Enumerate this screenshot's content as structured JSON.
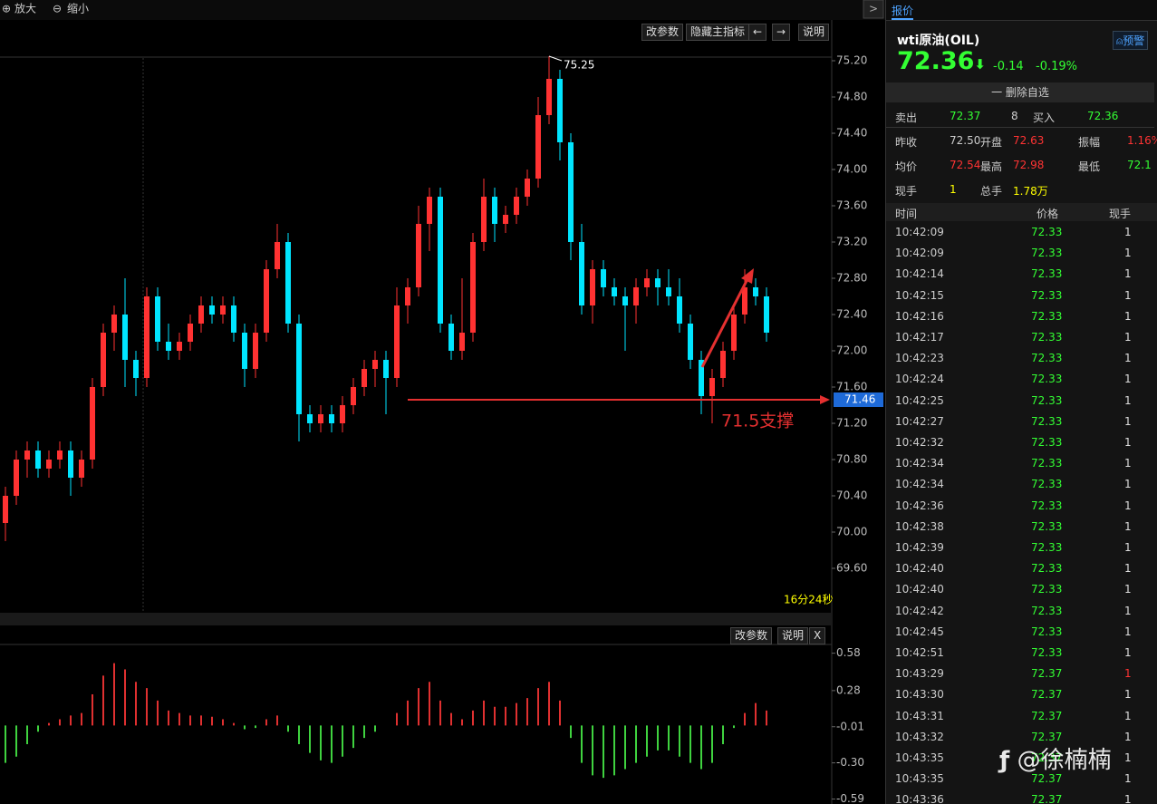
{
  "toolbar": {
    "zoom_in": "放大",
    "zoom_out": "缩小",
    "buttons": [
      "改参数",
      "隐藏主指标",
      "←",
      "→",
      "说明"
    ],
    "timer": "16分24秒",
    "lower_buttons": [
      "改参数",
      "说明",
      "X"
    ]
  },
  "chart_data": [
    {
      "type": "candlestick",
      "open": [
        70.1,
        70.4,
        70.8,
        70.9,
        70.7,
        70.8,
        70.9,
        70.6,
        70.8,
        71.6,
        72.2,
        72.4,
        71.9,
        71.7,
        72.6,
        72.1,
        72.0,
        72.1,
        72.3,
        72.5,
        72.4,
        72.5,
        72.2,
        71.8,
        72.2,
        72.9,
        73.2,
        72.3,
        71.3,
        71.2,
        71.3,
        71.2,
        71.4,
        71.6,
        71.8,
        71.9,
        71.7,
        72.5,
        72.7,
        73.4,
        73.7,
        72.3,
        72.0,
        72.2,
        73.2,
        73.7,
        73.4,
        73.5,
        73.7,
        73.9,
        74.6,
        75.0,
        74.3,
        73.2,
        72.5,
        72.9,
        72.7,
        72.6,
        72.5,
        72.7,
        72.8,
        72.7,
        72.6,
        72.3,
        71.9,
        71.5,
        71.7,
        72.0,
        72.4,
        72.7,
        72.6
      ],
      "high": [
        70.5,
        70.9,
        71.0,
        71.0,
        70.9,
        71.0,
        71.0,
        70.9,
        71.7,
        72.3,
        72.5,
        72.8,
        72.0,
        72.7,
        72.7,
        72.3,
        72.2,
        72.4,
        72.6,
        72.6,
        72.6,
        72.6,
        72.3,
        72.3,
        73.0,
        73.4,
        73.3,
        72.4,
        71.4,
        71.4,
        71.4,
        71.5,
        71.7,
        71.9,
        72.0,
        72.0,
        72.7,
        72.8,
        73.6,
        73.8,
        73.8,
        72.4,
        72.8,
        73.3,
        73.9,
        73.8,
        73.6,
        73.8,
        74.0,
        74.8,
        75.25,
        75.1,
        74.4,
        73.4,
        73.0,
        73.0,
        72.8,
        72.7,
        72.8,
        72.9,
        72.9,
        72.9,
        72.8,
        72.4,
        72.0,
        71.8,
        72.1,
        72.5,
        72.9,
        72.8,
        72.7
      ],
      "low": [
        69.9,
        70.3,
        70.6,
        70.6,
        70.6,
        70.7,
        70.4,
        70.5,
        70.7,
        71.5,
        72.0,
        71.6,
        71.5,
        71.6,
        72.0,
        71.9,
        71.9,
        72.0,
        72.2,
        72.3,
        72.3,
        72.1,
        71.6,
        71.7,
        72.1,
        72.8,
        72.2,
        71.0,
        71.1,
        71.1,
        71.1,
        71.1,
        71.3,
        71.5,
        71.6,
        71.3,
        71.6,
        72.3,
        72.6,
        73.1,
        72.2,
        71.9,
        71.9,
        72.1,
        73.1,
        73.2,
        73.3,
        73.4,
        73.6,
        73.8,
        74.5,
        74.1,
        73.0,
        72.4,
        72.3,
        72.6,
        72.5,
        72.0,
        72.3,
        72.6,
        72.5,
        72.5,
        72.2,
        71.8,
        71.3,
        71.2,
        71.6,
        71.9,
        72.3,
        72.5,
        72.1
      ],
      "close": [
        70.4,
        70.8,
        70.9,
        70.7,
        70.8,
        70.9,
        70.6,
        70.8,
        71.6,
        72.2,
        72.4,
        71.9,
        71.7,
        72.6,
        72.1,
        72.0,
        72.1,
        72.3,
        72.5,
        72.4,
        72.5,
        72.2,
        71.8,
        72.2,
        72.9,
        73.2,
        72.3,
        71.3,
        71.2,
        71.3,
        71.2,
        71.4,
        71.6,
        71.8,
        71.9,
        71.7,
        72.5,
        72.7,
        73.4,
        73.7,
        72.3,
        72.0,
        72.2,
        73.2,
        73.7,
        73.4,
        73.5,
        73.7,
        73.9,
        74.6,
        75.0,
        74.3,
        73.2,
        72.5,
        72.9,
        72.7,
        72.6,
        72.5,
        72.7,
        72.8,
        72.7,
        72.6,
        72.3,
        71.9,
        71.5,
        71.7,
        72.0,
        72.4,
        72.7,
        72.6,
        72.2
      ],
      "up_color": "#ff3232",
      "down_color": "#00e5ff",
      "ylim": [
        69.1,
        75.3
      ],
      "yticks": [
        {
          "value": 75.2,
          "label": "75.20"
        },
        {
          "value": 74.8,
          "label": "74.80"
        },
        {
          "value": 74.4,
          "label": "74.40"
        },
        {
          "value": 74,
          "label": "74.00"
        },
        {
          "value": 73.6,
          "label": "73.60"
        },
        {
          "value": 73.2,
          "label": "73.20"
        },
        {
          "value": 72.8,
          "label": "72.80"
        },
        {
          "value": 72.4,
          "label": "72.40"
        },
        {
          "value": 72,
          "label": "72.00"
        },
        {
          "value": 71.6,
          "label": "71.60"
        },
        {
          "value": 71.2,
          "label": "71.20"
        },
        {
          "value": 70.8,
          "label": "70.80"
        },
        {
          "value": 70.4,
          "label": "70.40"
        },
        {
          "value": 70,
          "label": "70.00"
        },
        {
          "value": 69.6,
          "label": "69.60"
        }
      ],
      "high_label": 75.25,
      "last_price": 71.46,
      "annotation": "71.5支撑"
    },
    {
      "type": "bar",
      "values": [
        -0.3,
        -0.25,
        -0.15,
        -0.05,
        0.02,
        0.05,
        0.08,
        0.1,
        0.25,
        0.4,
        0.5,
        0.45,
        0.35,
        0.3,
        0.2,
        0.12,
        0.1,
        0.08,
        0.08,
        0.07,
        0.05,
        0.02,
        -0.03,
        -0.02,
        0.05,
        0.08,
        -0.05,
        -0.15,
        -0.22,
        -0.28,
        -0.3,
        -0.25,
        -0.18,
        -0.1,
        -0.05,
        0.0,
        0.1,
        0.2,
        0.3,
        0.35,
        0.2,
        0.1,
        0.05,
        0.12,
        0.2,
        0.15,
        0.15,
        0.18,
        0.22,
        0.3,
        0.35,
        0.2,
        -0.1,
        -0.3,
        -0.4,
        -0.42,
        -0.4,
        -0.35,
        -0.3,
        -0.25,
        -0.2,
        -0.2,
        -0.25,
        -0.3,
        -0.35,
        -0.3,
        -0.15,
        -0.02,
        0.1,
        0.18,
        0.12
      ],
      "up_color": "#e03030",
      "down_color": "#3fd23f",
      "ylim": [
        -0.63,
        0.65
      ],
      "yticks": [
        0.58,
        0.28,
        -0.01,
        {
          "value": -0.3,
          "label": "-0.30"
        },
        -0.59
      ]
    }
  ],
  "quote": {
    "tab": "报价",
    "name": "wti原油(OIL)",
    "alert": "预警",
    "price": "72.36",
    "arrow": "⬇",
    "change": "-0.14",
    "change_pct": "-0.19%",
    "remove": "一 删除自选",
    "sell_label": "卖出",
    "sell_price": "72.37",
    "sell_qty": "8",
    "buy_label": "买入",
    "buy_price": "72.36",
    "stats": [
      [
        "昨收",
        "72.50",
        "开盘",
        "72.63",
        "振幅",
        "1.16%"
      ],
      [
        "均价",
        "72.54",
        "最高",
        "72.98",
        "最低",
        "72.1"
      ],
      [
        "现手",
        "1",
        "总手",
        "1.78万",
        "",
        ""
      ]
    ],
    "trade_header": [
      "时间",
      "价格",
      "现手"
    ],
    "trades": [
      {
        "time": "10:42:09",
        "price": "72.33",
        "volume": "1"
      },
      {
        "time": "10:42:09",
        "price": "72.33",
        "volume": "1"
      },
      {
        "time": "10:42:14",
        "price": "72.33",
        "volume": "1"
      },
      {
        "time": "10:42:15",
        "price": "72.33",
        "volume": "1"
      },
      {
        "time": "10:42:16",
        "price": "72.33",
        "volume": "1"
      },
      {
        "time": "10:42:17",
        "price": "72.33",
        "volume": "1"
      },
      {
        "time": "10:42:23",
        "price": "72.33",
        "volume": "1"
      },
      {
        "time": "10:42:24",
        "price": "72.33",
        "volume": "1"
      },
      {
        "time": "10:42:25",
        "price": "72.33",
        "volume": "1"
      },
      {
        "time": "10:42:27",
        "price": "72.33",
        "volume": "1"
      },
      {
        "time": "10:42:32",
        "price": "72.33",
        "volume": "1"
      },
      {
        "time": "10:42:34",
        "price": "72.33",
        "volume": "1"
      },
      {
        "time": "10:42:34",
        "price": "72.33",
        "volume": "1"
      },
      {
        "time": "10:42:36",
        "price": "72.33",
        "volume": "1"
      },
      {
        "time": "10:42:38",
        "price": "72.33",
        "volume": "1"
      },
      {
        "time": "10:42:39",
        "price": "72.33",
        "volume": "1"
      },
      {
        "time": "10:42:40",
        "price": "72.33",
        "volume": "1"
      },
      {
        "time": "10:42:40",
        "price": "72.33",
        "volume": "1"
      },
      {
        "time": "10:42:42",
        "price": "72.33",
        "volume": "1"
      },
      {
        "time": "10:42:45",
        "price": "72.33",
        "volume": "1"
      },
      {
        "time": "10:42:51",
        "price": "72.33",
        "volume": "1"
      },
      {
        "time": "10:43:29",
        "price": "72.37",
        "volume": "1",
        "volume_color": "#f33"
      },
      {
        "time": "10:43:30",
        "price": "72.37",
        "volume": "1"
      },
      {
        "time": "10:43:31",
        "price": "72.37",
        "volume": "1"
      },
      {
        "time": "10:43:32",
        "price": "72.37",
        "volume": "1"
      },
      {
        "time": "10:43:35",
        "price": "72.37",
        "volume": "1"
      },
      {
        "time": "10:43:35",
        "price": "72.37",
        "volume": "1"
      },
      {
        "time": "10:43:36",
        "price": "72.37",
        "volume": "1"
      }
    ]
  },
  "watermark": "@徐楠楠"
}
